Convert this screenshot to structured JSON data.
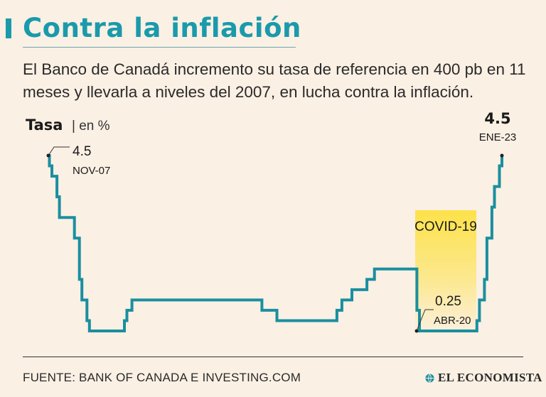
{
  "title": "Contra la inflación",
  "subtitle": "El Banco de Canadá incremento su tasa de referencia en 400 pb en 11 meses y llevarla a niveles del 2007, en lucha contra la inflación.",
  "source": "FUENTE: BANK OF CANADA E INVESTING.COM",
  "brand": "EL ECONOMISTA",
  "colors": {
    "line": "#1a8fa0",
    "title": "#1a9aab",
    "highlight": "#fde24a",
    "background": "#fbf0e4"
  },
  "chart_data": {
    "type": "line",
    "ylabel": "Tasa",
    "yunit": "| en %",
    "x": [
      "2007-11",
      "2007-12",
      "2008-01",
      "2008-03",
      "2008-04",
      "2008-10",
      "2008-12",
      "2009-01",
      "2009-03",
      "2009-04",
      "2010-06",
      "2010-07",
      "2010-09",
      "2015-01",
      "2015-07",
      "2017-07",
      "2017-09",
      "2018-01",
      "2018-07",
      "2018-10",
      "2020-03",
      "2020-04",
      "2022-03",
      "2022-04",
      "2022-06",
      "2022-07",
      "2022-09",
      "2022-10",
      "2022-12",
      "2023-01"
    ],
    "y": [
      4.5,
      4.25,
      4.0,
      3.5,
      3.0,
      2.5,
      1.5,
      1.0,
      0.5,
      0.25,
      0.5,
      0.75,
      1.0,
      0.75,
      0.5,
      0.75,
      1.0,
      1.25,
      1.5,
      1.75,
      0.75,
      0.25,
      0.5,
      1.0,
      1.5,
      2.5,
      3.25,
      3.75,
      4.25,
      4.5
    ],
    "annotations": [
      {
        "value": "4.5",
        "label": "NOV-07"
      },
      {
        "value": "0.25",
        "label": "ABR-20"
      },
      {
        "value": "4.5",
        "label": "ENE-23"
      }
    ],
    "highlight": {
      "label": "COVID-19",
      "from": "2020-03",
      "to": "2022-03"
    }
  }
}
